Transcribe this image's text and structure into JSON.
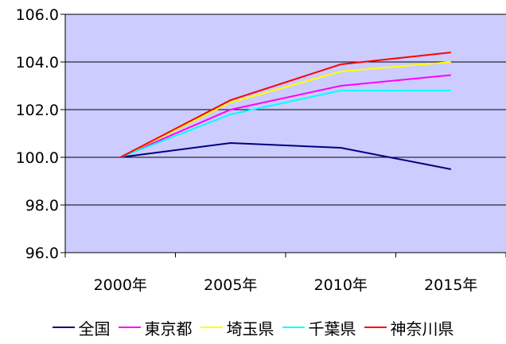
{
  "chart_data": {
    "type": "line",
    "categories": [
      "2000年",
      "2005年",
      "2010年",
      "2015年"
    ],
    "ylim": [
      96.0,
      106.0
    ],
    "yticks": [
      "96.0",
      "98.0",
      "100.0",
      "102.0",
      "104.0",
      "106.0"
    ],
    "ytick_values": [
      96,
      98,
      100,
      102,
      104,
      106
    ],
    "grid": true,
    "legend_position": "bottom",
    "plot_background": "#ccccff",
    "series": [
      {
        "name": "全国",
        "color": "#000080",
        "values": [
          100.0,
          100.6,
          100.4,
          99.5
        ]
      },
      {
        "name": "東京都",
        "color": "#ff00ff",
        "values": [
          100.0,
          102.0,
          103.0,
          103.45
        ]
      },
      {
        "name": "埼玉県",
        "color": "#ffff00",
        "values": [
          100.0,
          102.3,
          103.6,
          104.0
        ]
      },
      {
        "name": "千葉県",
        "color": "#00ffff",
        "values": [
          100.0,
          101.8,
          102.8,
          102.8
        ]
      },
      {
        "name": "神奈川県",
        "color": "#ff0000",
        "values": [
          100.0,
          102.4,
          103.9,
          104.4
        ]
      }
    ]
  }
}
